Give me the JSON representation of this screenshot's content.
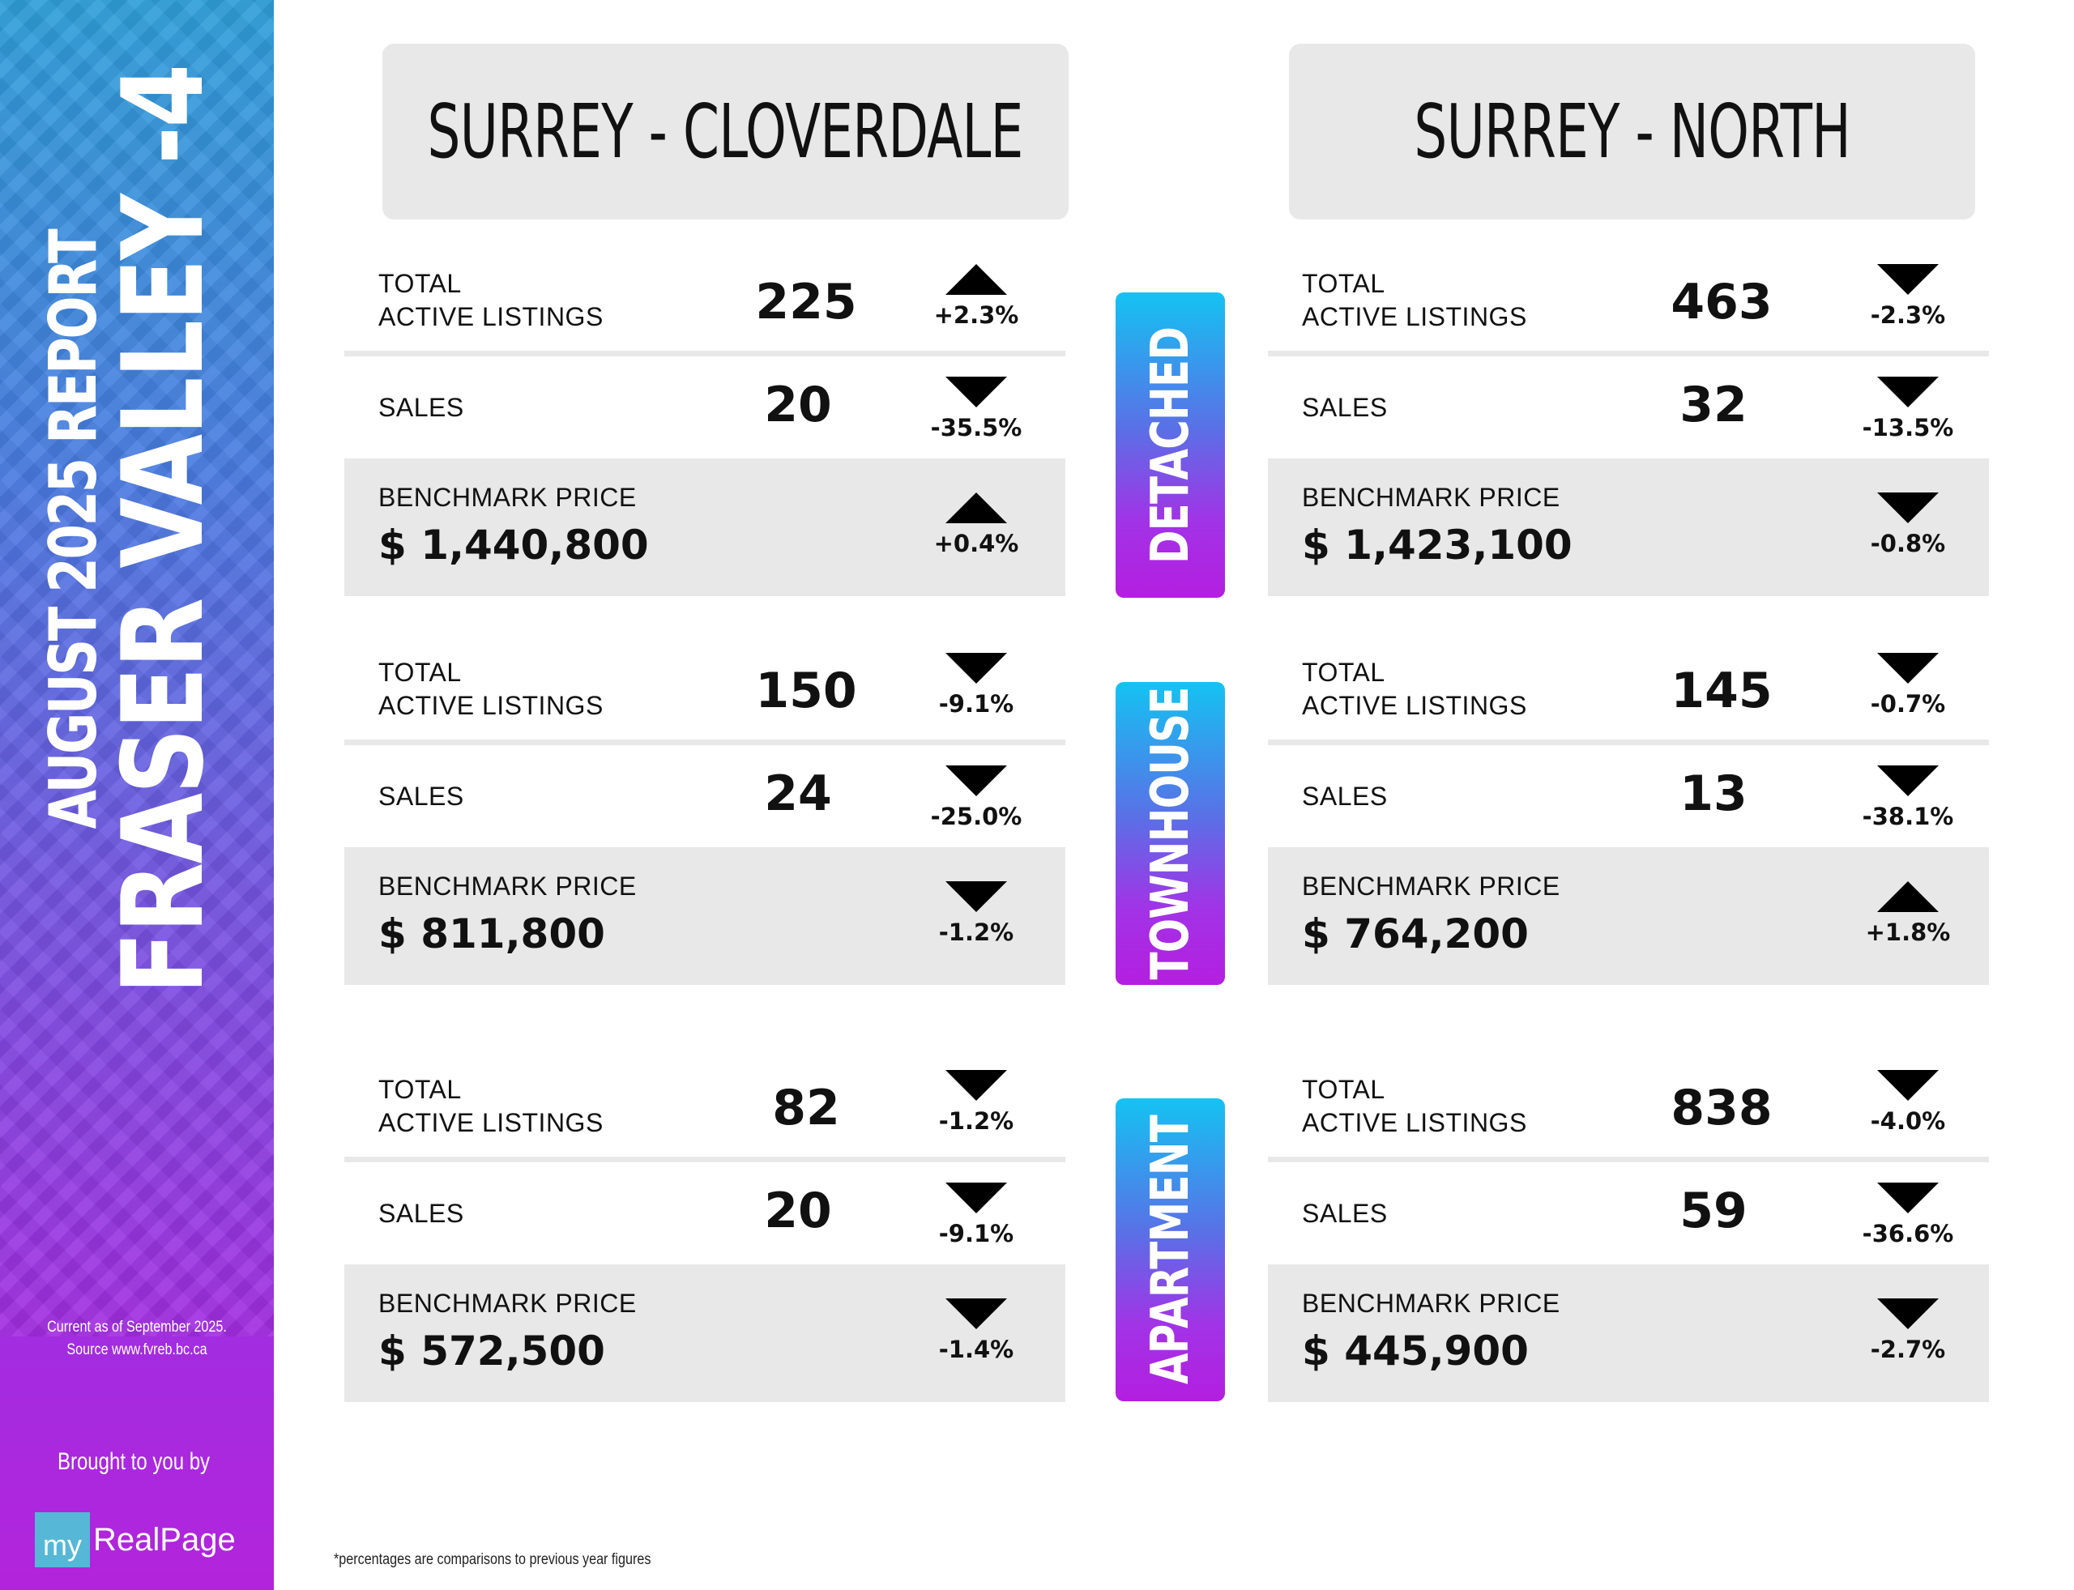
{
  "sidebar": {
    "line1": "AUGUST 2025 REPORT",
    "line2": "FRASER VALLEY -4",
    "source_line1": "Current as of September 2025.",
    "source_line2": "Source www.fvreb.bc.ca",
    "brought": "Brought to you by",
    "logo_my": "my",
    "logo_name": "RealPage"
  },
  "headers": {
    "left": "SURREY - CLOVERDALE",
    "right": "SURREY - NORTH"
  },
  "categories": {
    "detached": "DETACHED",
    "townhouse": "TOWNHOUSE",
    "apartment": "APARTMENT"
  },
  "labels": {
    "total_l1": "TOTAL",
    "total_l2": "ACTIVE LISTINGS",
    "sales": "SALES",
    "benchmark": "BENCHMARK PRICE"
  },
  "left": {
    "detached": {
      "listings": "225",
      "listings_chg": "+2.3%",
      "listings_dir": "up",
      "sales": "20",
      "sales_chg": "-35.5%",
      "sales_dir": "down",
      "price": "$ 1,440,800",
      "price_chg": "+0.4%",
      "price_dir": "up"
    },
    "townhouse": {
      "listings": "150",
      "listings_chg": "-9.1%",
      "listings_dir": "down",
      "sales": "24",
      "sales_chg": "-25.0%",
      "sales_dir": "down",
      "price": "$ 811,800",
      "price_chg": "-1.2%",
      "price_dir": "down"
    },
    "apartment": {
      "listings": "82",
      "listings_chg": "-1.2%",
      "listings_dir": "down",
      "sales": "20",
      "sales_chg": "-9.1%",
      "sales_dir": "down",
      "price": "$ 572,500",
      "price_chg": "-1.4%",
      "price_dir": "down"
    }
  },
  "right": {
    "detached": {
      "listings": "463",
      "listings_chg": "-2.3%",
      "listings_dir": "down",
      "sales": "32",
      "sales_chg": "-13.5%",
      "sales_dir": "down",
      "price": "$ 1,423,100",
      "price_chg": "-0.8%",
      "price_dir": "down"
    },
    "townhouse": {
      "listings": "145",
      "listings_chg": "-0.7%",
      "listings_dir": "down",
      "sales": "13",
      "sales_chg": "-38.1%",
      "sales_dir": "down",
      "price": "$ 764,200",
      "price_chg": "+1.8%",
      "price_dir": "up"
    },
    "apartment": {
      "listings": "838",
      "listings_chg": "-4.0%",
      "listings_dir": "down",
      "sales": "59",
      "sales_chg": "-36.6%",
      "sales_dir": "down",
      "price": "$ 445,900",
      "price_chg": "-2.7%",
      "price_dir": "down"
    }
  },
  "footnote": "*percentages are comparisons to previous year figures",
  "colors": {
    "panel": "#e8e8e8",
    "sidebar_top": "#2f9fd9",
    "sidebar_bottom": "#b224dc",
    "pill_top": "#14c3f2",
    "pill_bottom": "#b41ee0"
  }
}
